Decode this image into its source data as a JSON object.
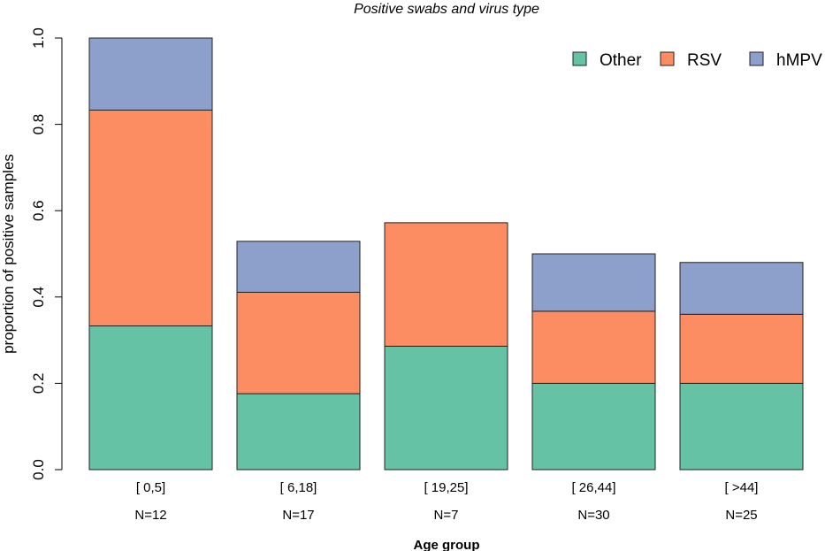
{
  "chart_data": {
    "type": "bar",
    "stacked": true,
    "title": "Positive swabs and virus type",
    "xlabel": "Age group",
    "ylabel": "proportion of positive samples",
    "ylim": [
      0,
      1.0
    ],
    "yticks": [
      "0.0",
      "0.2",
      "0.4",
      "0.6",
      "0.8",
      "1.0"
    ],
    "ytick_values": [
      0,
      0.2,
      0.4,
      0.6,
      0.8,
      1.0
    ],
    "categories": [
      "[ 0,5]",
      "[ 6,18]",
      "[ 19,25]",
      "[ 26,44]",
      "[ >44]"
    ],
    "sample_sizes": [
      "N=12",
      "N=17",
      "N=7",
      "N=30",
      "N=25"
    ],
    "series": [
      {
        "name": "Other",
        "color": "#66c2a5",
        "values": [
          0.333,
          0.176,
          0.286,
          0.2,
          0.2
        ]
      },
      {
        "name": "RSV",
        "color": "#fc8d62",
        "values": [
          0.5,
          0.235,
          0.286,
          0.167,
          0.16
        ]
      },
      {
        "name": "hMPV",
        "color": "#8da0cb",
        "values": [
          0.167,
          0.118,
          0.0,
          0.133,
          0.12
        ]
      }
    ],
    "legend_position": "top-right",
    "grid": false
  }
}
